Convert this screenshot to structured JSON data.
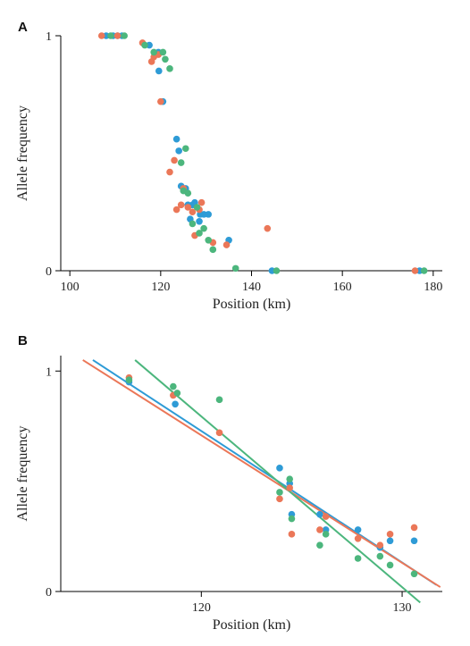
{
  "colors": {
    "blue": "#2e9bd6",
    "orange": "#eb7758",
    "green": "#4cb67d"
  },
  "chart_data": [
    {
      "panel": "A",
      "type": "scatter",
      "xlabel": "Position (km)",
      "ylabel": "Allele frequency",
      "xlim": [
        98,
        182
      ],
      "ylim": [
        0,
        1
      ],
      "xticks": [
        100,
        120,
        140,
        160,
        180
      ],
      "yticks": [
        0,
        1
      ],
      "series": [
        {
          "color_key": "blue",
          "x": [
            108.0,
            109.5,
            110.5,
            111.5,
            117.5,
            119.5,
            119.6,
            120.5,
            123.5,
            124.0,
            124.5,
            125.5,
            126.0,
            126.5,
            127.0,
            127.5,
            128.5,
            128.7,
            129.5,
            130.5,
            135.0,
            144.5,
            177.0
          ],
          "y": [
            1.0,
            1.0,
            1.0,
            1.0,
            0.96,
            0.93,
            0.85,
            0.72,
            0.56,
            0.51,
            0.36,
            0.35,
            0.28,
            0.22,
            0.28,
            0.29,
            0.21,
            0.24,
            0.24,
            0.24,
            0.13,
            0.0,
            0.0
          ]
        },
        {
          "color_key": "orange",
          "x": [
            107.0,
            110.5,
            116.0,
            118.0,
            118.5,
            119.5,
            120.0,
            122.0,
            123.0,
            123.5,
            124.5,
            125.0,
            126.0,
            127.0,
            127.5,
            128.5,
            129.0,
            131.5,
            134.5,
            143.5,
            176.0
          ],
          "y": [
            1.0,
            1.0,
            0.97,
            0.89,
            0.91,
            0.92,
            0.72,
            0.42,
            0.47,
            0.26,
            0.28,
            0.35,
            0.27,
            0.25,
            0.15,
            0.26,
            0.29,
            0.12,
            0.11,
            0.18,
            0.0
          ]
        },
        {
          "color_key": "green",
          "x": [
            109.0,
            112.0,
            116.5,
            118.5,
            120.5,
            121.0,
            122.0,
            124.5,
            125.0,
            125.5,
            126.0,
            127.0,
            128.0,
            128.5,
            129.5,
            130.5,
            131.5,
            136.5,
            145.5,
            178.0
          ],
          "y": [
            1.0,
            1.0,
            0.96,
            0.93,
            0.93,
            0.9,
            0.86,
            0.46,
            0.34,
            0.52,
            0.33,
            0.2,
            0.27,
            0.16,
            0.18,
            0.13,
            0.09,
            0.01,
            0.0,
            0.0
          ]
        }
      ]
    },
    {
      "panel": "B",
      "type": "scatter",
      "xlabel": "Position (km)",
      "ylabel": "Allele frequency",
      "xlim": [
        113,
        132
      ],
      "ylim": [
        0,
        1.07
      ],
      "xticks": [
        120,
        130
      ],
      "yticks": [
        0,
        1
      ],
      "series": [
        {
          "color_key": "blue",
          "x": [
            116.4,
            118.7,
            123.9,
            124.4,
            124.5,
            125.9,
            126.2,
            127.8,
            128.9,
            129.4,
            130.6
          ],
          "y": [
            0.95,
            0.85,
            0.56,
            0.49,
            0.35,
            0.35,
            0.28,
            0.28,
            0.2,
            0.23,
            0.23
          ],
          "fit": [
            [
              114.6,
              1.05
            ],
            [
              131.7,
              0.03
            ]
          ]
        },
        {
          "color_key": "orange",
          "x": [
            116.4,
            118.6,
            120.9,
            123.9,
            124.4,
            124.5,
            125.9,
            126.2,
            127.8,
            128.9,
            129.4,
            130.6
          ],
          "y": [
            0.97,
            0.89,
            0.72,
            0.42,
            0.47,
            0.26,
            0.28,
            0.34,
            0.24,
            0.21,
            0.26,
            0.29
          ],
          "fit": [
            [
              114.1,
              1.05
            ],
            [
              131.9,
              0.02
            ]
          ]
        },
        {
          "color_key": "green",
          "x": [
            116.4,
            118.6,
            118.8,
            120.9,
            123.9,
            124.4,
            124.5,
            125.9,
            126.2,
            127.8,
            128.9,
            129.4,
            130.6
          ],
          "y": [
            0.96,
            0.93,
            0.9,
            0.87,
            0.45,
            0.51,
            0.33,
            0.21,
            0.26,
            0.15,
            0.16,
            0.12,
            0.08
          ],
          "fit": [
            [
              116.7,
              1.05
            ],
            [
              130.9,
              -0.05
            ]
          ]
        }
      ]
    }
  ]
}
